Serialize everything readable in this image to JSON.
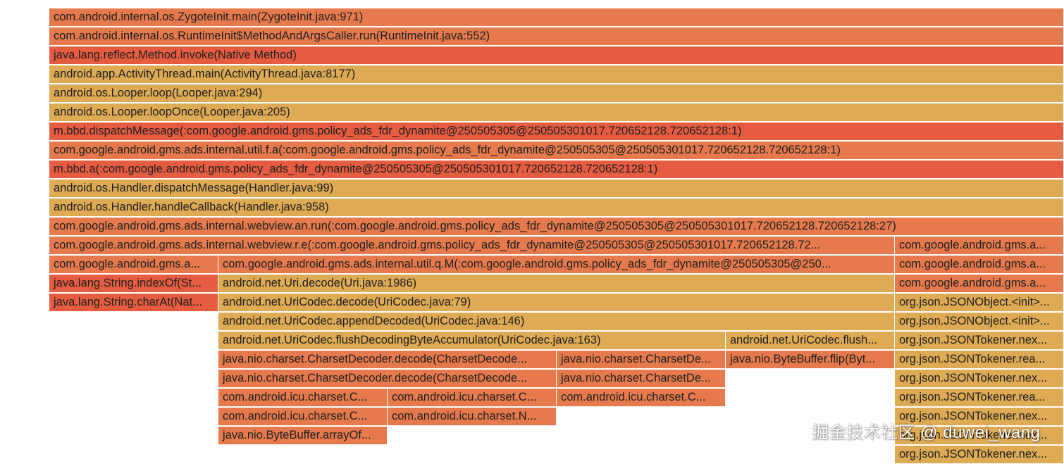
{
  "palette": {
    "orange": "#e67a4d",
    "red": "#e65c40",
    "tan": "#deaa54"
  },
  "frames": [
    {
      "text": "com.android.internal.os.ZygoteInit.main(ZygoteInit.java:971)",
      "color": "orange"
    },
    {
      "text": "com.android.internal.os.RuntimeInit$MethodAndArgsCaller.run(RuntimeInit.java:552)",
      "color": "orange"
    },
    {
      "text": "java.lang.reflect.Method.invoke(Native Method)",
      "color": "red"
    },
    {
      "text": "android.app.ActivityThread.main(ActivityThread.java:8177)",
      "color": "tan"
    },
    {
      "text": "android.os.Looper.loop(Looper.java:294)",
      "color": "tan"
    },
    {
      "text": "android.os.Looper.loopOnce(Looper.java:205)",
      "color": "tan"
    },
    {
      "text": "m.bbd.dispatchMessage(:com.google.android.gms.policy_ads_fdr_dynamite@250505305@250505301017.720652128.720652128:1)",
      "color": "red"
    },
    {
      "text": "com.google.android.gms.ads.internal.util.f.a(:com.google.android.gms.policy_ads_fdr_dynamite@250505305@250505301017.720652128.720652128:1)",
      "color": "orange"
    },
    {
      "text": "m.bbd.a(:com.google.android.gms.policy_ads_fdr_dynamite@250505305@250505301017.720652128.720652128:1)",
      "color": "red"
    },
    {
      "text": "android.os.Handler.dispatchMessage(Handler.java:99)",
      "color": "tan"
    },
    {
      "text": "android.os.Handler.handleCallback(Handler.java:958)",
      "color": "tan"
    },
    {
      "text": "com.google.android.gms.ads.internal.webview.an.run(:com.google.android.gms.policy_ads_fdr_dynamite@250505305@250505301017.720652128.720652128:27)",
      "color": "orange"
    },
    {
      "text": "com.google.android.gms.ads.internal.webview.r.e(:com.google.android.gms.policy_ads_fdr_dynamite@250505305@250505301017.720652128.72...",
      "color": "orange"
    },
    {
      "text": "com.google.android.gms.a...",
      "color": "orange"
    },
    {
      "text": "com.google.android.gms.a...",
      "color": "orange"
    },
    {
      "text": "com.google.android.gms.ads.internal.util.q.M(:com.google.android.gms.policy_ads_fdr_dynamite@250505305@250...",
      "color": "orange"
    },
    {
      "text": "com.google.android.gms.a...",
      "color": "orange"
    },
    {
      "text": "java.lang.String.indexOf(St...",
      "color": "red"
    },
    {
      "text": "android.net.Uri.decode(Uri.java:1986)",
      "color": "tan"
    },
    {
      "text": "com.google.android.gms.a...",
      "color": "orange"
    },
    {
      "text": "java.lang.String.charAt(Nat...",
      "color": "red"
    },
    {
      "text": "android.net.UriCodec.decode(UriCodec.java:79)",
      "color": "tan"
    },
    {
      "text": "org.json.JSONObject.<init>...",
      "color": "tan"
    },
    {
      "text": "android.net.UriCodec.appendDecoded(UriCodec.java:146)",
      "color": "tan"
    },
    {
      "text": "org.json.JSONObject.<init>...",
      "color": "tan"
    },
    {
      "text": "android.net.UriCodec.flushDecodingByteAccumulator(UriCodec.java:163)",
      "color": "tan"
    },
    {
      "text": "android.net.UriCodec.flush...",
      "color": "tan"
    },
    {
      "text": "org.json.JSONTokener.nex...",
      "color": "tan"
    },
    {
      "text": "java.nio.charset.CharsetDecoder.decode(CharsetDecode...",
      "color": "orange"
    },
    {
      "text": "java.nio.charset.CharsetDe...",
      "color": "orange"
    },
    {
      "text": "java.nio.ByteBuffer.flip(Byt...",
      "color": "orange"
    },
    {
      "text": "org.json.JSONTokener.rea...",
      "color": "tan"
    },
    {
      "text": "java.nio.charset.CharsetDecoder.decode(CharsetDecode...",
      "color": "orange"
    },
    {
      "text": "java.nio.charset.CharsetDe...",
      "color": "orange"
    },
    {
      "text": "org.json.JSONTokener.nex...",
      "color": "tan"
    },
    {
      "text": "com.android.icu.charset.C...",
      "color": "orange"
    },
    {
      "text": "com.android.icu.charset.C...",
      "color": "orange"
    },
    {
      "text": "com.android.icu.charset.C...",
      "color": "orange"
    },
    {
      "text": "org.json.JSONTokener.rea...",
      "color": "tan"
    },
    {
      "text": "com.android.icu.charset.C...",
      "color": "orange"
    },
    {
      "text": "com.android.icu.charset.N...",
      "color": "orange"
    },
    {
      "text": "org.json.JSONTokener.nex...",
      "color": "tan"
    },
    {
      "text": "java.nio.ByteBuffer.arrayOf...",
      "color": "orange"
    },
    {
      "text": "org.json.JSONTokener.nex...",
      "color": "tan"
    },
    {
      "text": "org.json.JSONTokener.nex...",
      "color": "tan"
    }
  ],
  "watermark": "掘金技术社区 @ duwei_wang"
}
